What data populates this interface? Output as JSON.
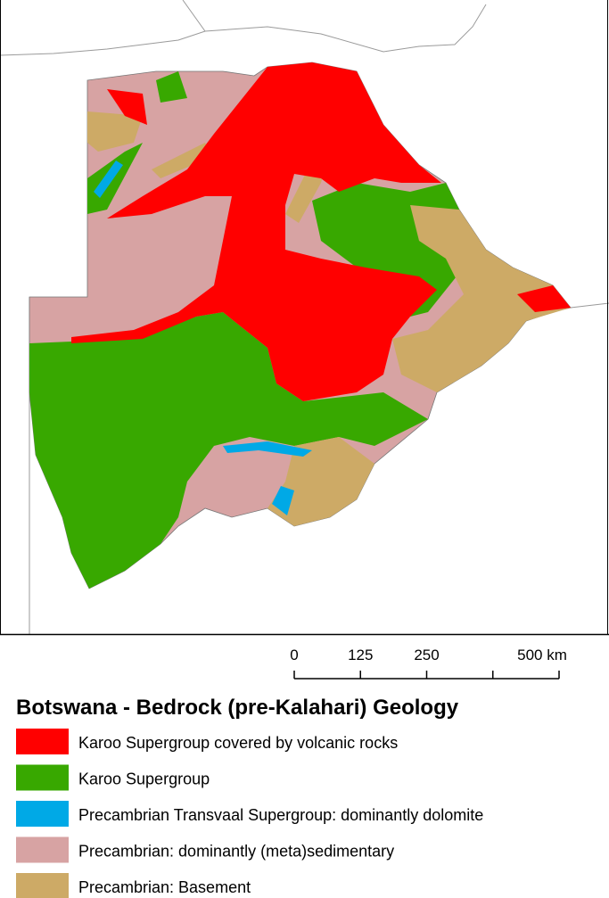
{
  "title": "Botswana - Bedrock (pre-Kalahari) Geology",
  "scale_bar": {
    "ticks": [
      {
        "value": 0,
        "label": "0"
      },
      {
        "value": 125,
        "label": "125"
      },
      {
        "value": 250,
        "label": "250"
      },
      {
        "value": 375,
        "label": null
      },
      {
        "value": 500,
        "label": "500 km"
      }
    ],
    "max": 500
  },
  "legend": [
    {
      "label": "Karoo Supergroup covered by volcanic rocks",
      "color": "#ff0000"
    },
    {
      "label": "Karoo Supergroup",
      "color": "#38a800"
    },
    {
      "label": "Precambrian Transvaal Supergroup: dominantly dolomite",
      "color": "#00a9e6"
    },
    {
      "label": "Precambrian: dominantly (meta)sedimentary",
      "color": "#d7a3a3"
    },
    {
      "label": "Precambrian: Basement",
      "color": "#cdaa66"
    }
  ]
}
